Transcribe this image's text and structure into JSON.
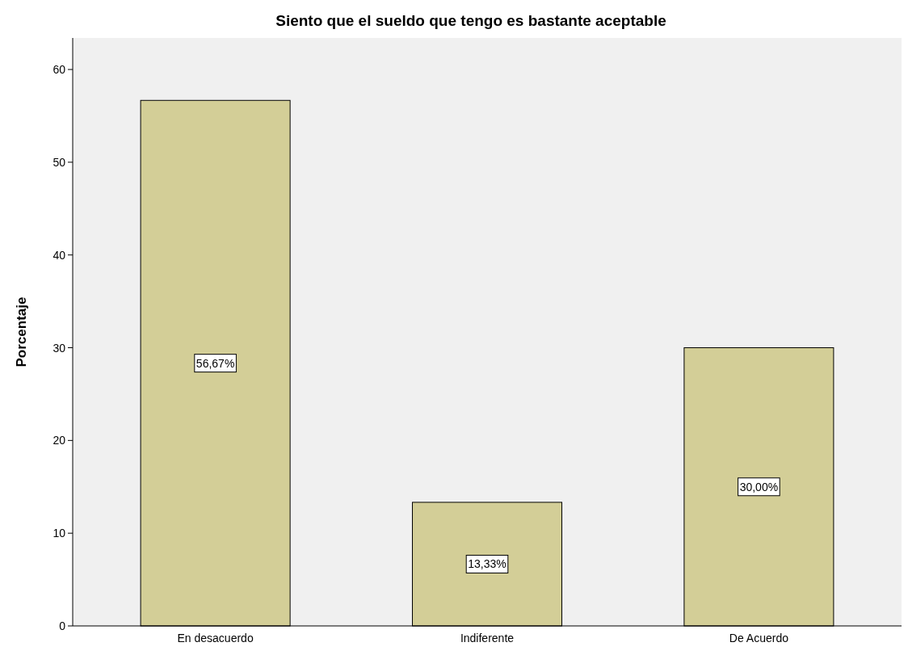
{
  "chart_data": {
    "type": "bar",
    "title": "Siento que el sueldo que tengo es bastante aceptable",
    "ylabel": "Porcentaje",
    "categories": [
      "En desacuerdo",
      "Indiferente",
      "De Acuerdo"
    ],
    "values": [
      56.67,
      13.33,
      30.0
    ],
    "value_labels": [
      "56,67%",
      "13,33%",
      "30,00%"
    ],
    "color": "#d3ce97",
    "ylim": [
      0,
      63.4
    ],
    "yticks": [
      0,
      10,
      20,
      30,
      40,
      50,
      60
    ],
    "grid": false
  }
}
